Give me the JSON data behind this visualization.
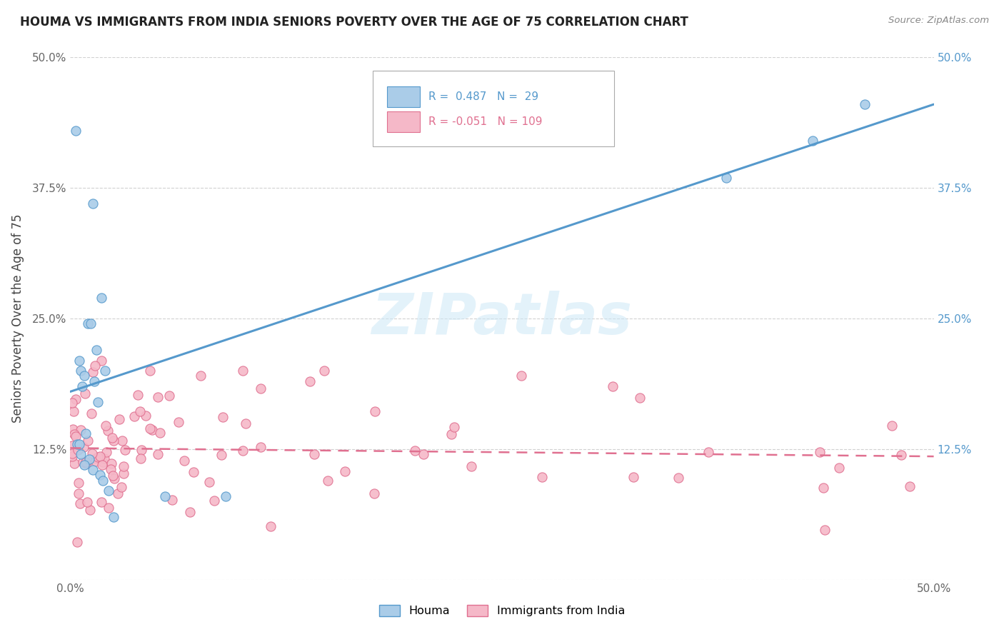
{
  "title": "HOUMA VS IMMIGRANTS FROM INDIA SENIORS POVERTY OVER THE AGE OF 75 CORRELATION CHART",
  "source": "Source: ZipAtlas.com",
  "ylabel": "Seniors Poverty Over the Age of 75",
  "xlim": [
    0.0,
    0.5
  ],
  "ylim": [
    0.0,
    0.5
  ],
  "xticks": [
    0.0,
    0.1,
    0.2,
    0.3,
    0.4,
    0.5
  ],
  "xticklabels": [
    "0.0%",
    "",
    "",
    "",
    "",
    "50.0%"
  ],
  "yticks": [
    0.0,
    0.125,
    0.25,
    0.375,
    0.5
  ],
  "yticklabels_left": [
    "",
    "12.5%",
    "25.0%",
    "37.5%",
    "50.0%"
  ],
  "yticklabels_right": [
    "",
    "12.5%",
    "25.0%",
    "37.5%",
    "50.0%"
  ],
  "houma_fill_color": "#aacce8",
  "houma_edge_color": "#5599cc",
  "india_fill_color": "#f5b8c8",
  "india_edge_color": "#e07090",
  "houma_line_color": "#5599cc",
  "india_line_color": "#e07090",
  "houma_R": 0.487,
  "houma_N": 29,
  "india_R": -0.051,
  "india_N": 109,
  "watermark": "ZIPatlas",
  "legend_label_houma": "Houma",
  "legend_label_india": "Immigrants from India",
  "houma_line_start_y": 0.18,
  "houma_line_end_y": 0.455,
  "india_line_start_y": 0.126,
  "india_line_end_y": 0.118
}
